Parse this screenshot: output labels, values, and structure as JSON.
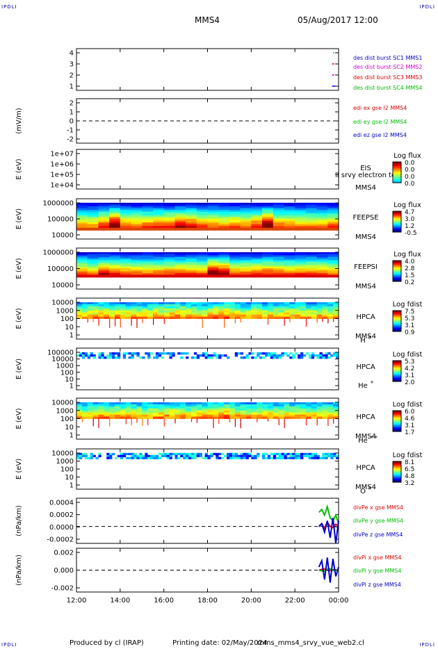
{
  "header": {
    "corner_label": "IPDLI",
    "spacecraft": "MMS4",
    "datetime": "05/Aug/2017 12:00"
  },
  "footer": {
    "produced_by": "Produced by cl (IRAP)",
    "printing_date": "Printing date: 02/May/2024",
    "product": "mms_mms4_srvy_vue_web2.cl"
  },
  "chart_data": [
    {
      "type": "line",
      "id": "burst",
      "ylabel": "",
      "yticks": [
        "4",
        "3",
        "2",
        "1"
      ],
      "legend": [
        {
          "text": "des dist burst SC1 MMS1",
          "color": "#0000cc"
        },
        {
          "text": "des dist burst SC2 MMS2",
          "color": "#cc00cc"
        },
        {
          "text": "des dist burst SC3 MMS3",
          "color": "#dd0000"
        },
        {
          "text": "des dist burst SC4 MMS4",
          "color": "#00bb00"
        }
      ],
      "series": [
        {
          "sc": 1,
          "x": [
            23.7,
            23.85
          ],
          "color": "#0000cc"
        },
        {
          "sc": 2,
          "x": [
            23.7,
            23.8
          ],
          "color": "#cc00cc"
        },
        {
          "sc": 3,
          "x": [
            23.7,
            23.8
          ],
          "color": "#dd0000"
        },
        {
          "sc": 4,
          "x": [
            23.75,
            23.8
          ],
          "color": "#00bb00"
        }
      ]
    },
    {
      "type": "line",
      "id": "edi",
      "ylabel": "(mV/m)",
      "yticks": [
        "2",
        "1",
        "0",
        "-1",
        "-2"
      ],
      "legend": [
        {
          "text": "edi ex gse l2 MMS4",
          "color": "#dd0000"
        },
        {
          "text": "edi ey gse l2 MMS4",
          "color": "#00bb00"
        },
        {
          "text": "edi ez gse l2 MMS4",
          "color": "#0000cc"
        }
      ]
    },
    {
      "type": "heatmap",
      "id": "eis",
      "ylabel": "E (eV)",
      "yticks": [
        "1e+07",
        "1e+06",
        "1e+05",
        "1e+04"
      ],
      "instrument": "EIS",
      "spacecraft": "MMS4",
      "overlay_text": "ll srvy electron to",
      "colorbar_label": "Log flux",
      "colorbar_ticks": [
        "0.0",
        "0.0",
        "0.0",
        "0.0"
      ]
    },
    {
      "type": "heatmap",
      "id": "feepse",
      "ylabel": "E (eV)",
      "yticks": [
        "1000000",
        "100000",
        "10000"
      ],
      "instrument": "FEEPSE",
      "spacecraft": "MMS4",
      "colorbar_label": "Log flux",
      "colorbar_ticks": [
        "4.7",
        "3.0",
        "1.2",
        "-0.5"
      ],
      "profile": [
        0.2,
        0.15,
        0.4,
        0.8,
        0.3,
        0.25,
        0.3,
        0.35,
        0.4,
        0.6,
        0.5,
        0.3,
        0.25,
        0.2,
        0.3,
        0.25,
        0.4,
        0.8,
        0.3,
        0.25,
        0.2,
        0.2,
        0.2,
        0.3
      ]
    },
    {
      "type": "heatmap",
      "id": "feepsi",
      "ylabel": "E (eV)",
      "yticks": [
        "1000000",
        "100000",
        "10000"
      ],
      "instrument": "FEEPSI",
      "spacecraft": "MMS4",
      "colorbar_label": "Log flux",
      "colorbar_ticks": [
        "4.0",
        "2.8",
        "1.5",
        "0.2"
      ],
      "profile": [
        0.3,
        0.2,
        0.5,
        0.35,
        0.3,
        0.25,
        0.2,
        0.25,
        0.3,
        0.35,
        0.3,
        0.25,
        0.7,
        0.6,
        0.3,
        0.25,
        0.3,
        0.35,
        0.3,
        0.25,
        0.3,
        0.3,
        0.25,
        0.2
      ]
    },
    {
      "type": "heatmap",
      "id": "hpca-h",
      "ylabel": "E (eV)",
      "yticks": [
        "10000",
        "1000",
        "100",
        "10",
        "1"
      ],
      "instrument": "HPCA",
      "spacecraft": "MMS4",
      "species": "H",
      "species_sup": "+",
      "colorbar_label": "Log fdist",
      "colorbar_ticks": [
        "7.5",
        "5.3",
        "3.1",
        "0.9"
      ],
      "profile": [
        0.4,
        0.5,
        0.6,
        0.5,
        0.4,
        0.5,
        0.45,
        0.5,
        0.55,
        0.6,
        0.5,
        0.45,
        0.6,
        0.7,
        0.55,
        0.4,
        0.5,
        0.45,
        0.4,
        0.5,
        0.45,
        0.4,
        0.5,
        0.45
      ]
    },
    {
      "type": "heatmap",
      "id": "hpca-he",
      "ylabel": "E (eV)",
      "yticks": [
        "100000",
        "10000",
        "1000",
        "100",
        "10",
        "1"
      ],
      "instrument": "HPCA",
      "species": "He",
      "species_sup": "+",
      "colorbar_label": "Log fdist",
      "colorbar_ticks": [
        "5.3",
        "4.2",
        "3.1",
        "2.0"
      ],
      "profile": [
        0.2,
        0.1,
        0.15,
        0.2,
        0.15,
        0.1,
        0.1,
        0.15,
        0.1,
        0.1,
        0.1,
        0.15,
        0.2,
        0.3,
        0.15,
        0.1,
        0.2,
        0.3,
        0.25,
        0.2,
        0.35,
        0.3,
        0.3,
        0.3
      ]
    },
    {
      "type": "heatmap",
      "id": "hpca-he2",
      "ylabel": "E (eV)",
      "yticks": [
        "10000",
        "1000",
        "100",
        "10",
        "1"
      ],
      "instrument": "HPCA",
      "spacecraft": "MMS4",
      "species": "He",
      "species_sup": "++",
      "colorbar_label": "Log fdist",
      "colorbar_ticks": [
        "6.0",
        "4.6",
        "3.1",
        "1.7"
      ],
      "profile": [
        0.4,
        0.5,
        0.6,
        0.55,
        0.5,
        0.5,
        0.45,
        0.5,
        0.55,
        0.5,
        0.45,
        0.5,
        0.6,
        0.7,
        0.5,
        0.45,
        0.5,
        0.45,
        0.4,
        0.5,
        0.45,
        0.4,
        0.45,
        0.4
      ]
    },
    {
      "type": "heatmap",
      "id": "hpca-o",
      "ylabel": "E (eV)",
      "yticks": [
        "10000",
        "1000",
        "100",
        "10",
        "1"
      ],
      "instrument": "HPCA",
      "spacecraft": "MMS4",
      "species": "O",
      "species_sup": "+",
      "colorbar_label": "Log fdist",
      "colorbar_ticks": [
        "8.1",
        "6.5",
        "4.8",
        "3.2"
      ],
      "profile": [
        0.3,
        0.2,
        0.1,
        0.3,
        0.4,
        0.5,
        0.45,
        0.4,
        0.3,
        0.4,
        0.45,
        0.4,
        0.35,
        0.4,
        0.45,
        0.4,
        0.35,
        0.4,
        0.45,
        0.4,
        0.35,
        0.4,
        0.45,
        0.4
      ]
    },
    {
      "type": "line",
      "id": "divpe",
      "ylabel": "(nPa/km)",
      "yticks": [
        "0.0004",
        "0.0002",
        "0.0000",
        "-0.0002"
      ],
      "ylim": [
        -0.0003,
        0.0005
      ],
      "legend": [
        {
          "text": "divPe x gse MMS4",
          "color": "#dd0000"
        },
        {
          "text": "divPe y gse MMS4",
          "color": "#00bb00"
        },
        {
          "text": "divPe z gse MMS4",
          "color": "#0000cc"
        }
      ],
      "x_start": 23.1,
      "series": [
        {
          "name": "x",
          "color": "#dd0000",
          "values": [
            0.0,
            5e-05,
            -3e-05,
            8e-05,
            0.0,
            -2e-05,
            4e-05,
            0.0
          ]
        },
        {
          "name": "y",
          "color": "#00bb00",
          "values": [
            0.00025,
            0.0003,
            0.0002,
            0.00035,
            0.00015,
            0.0001,
            0.0002,
            5e-05
          ]
        },
        {
          "name": "z",
          "color": "#0000cc",
          "values": [
            0.0,
            5e-05,
            -0.0001,
            0.0001,
            -0.0002,
            0.00015,
            -0.0003,
            0.0001
          ]
        }
      ]
    },
    {
      "type": "line",
      "id": "divpi",
      "ylabel": "(nPa/km)",
      "yticks": [
        "0.002",
        "0.000",
        "-0.002"
      ],
      "ylim": [
        -0.0035,
        0.0035
      ],
      "legend": [
        {
          "text": "divPi x gse MMS4",
          "color": "#dd0000"
        },
        {
          "text": "divPi y gse MMS4",
          "color": "#00bb00"
        },
        {
          "text": "divPi z gse MMS4",
          "color": "#0000cc"
        }
      ],
      "x_start": 23.1,
      "series": [
        {
          "name": "x",
          "color": "#dd0000",
          "values": [
            0.0,
            0.0002,
            -0.0001,
            0.0001,
            0.0
          ]
        },
        {
          "name": "y",
          "color": "#00bb00",
          "values": [
            0.0,
            -0.0002,
            0.0003,
            -0.0001,
            0.0
          ]
        },
        {
          "name": "z",
          "color": "#0000cc",
          "values": [
            0.0005,
            0.0015,
            -0.0015,
            0.002,
            -0.002,
            0.0018,
            -0.001,
            0.0005
          ]
        }
      ]
    }
  ],
  "xaxis": {
    "start_hour": 12,
    "end_hour": 24,
    "tick_labels": [
      "12:00",
      "14:00",
      "16:00",
      "18:00",
      "20:00",
      "22:00",
      "00:00"
    ]
  }
}
